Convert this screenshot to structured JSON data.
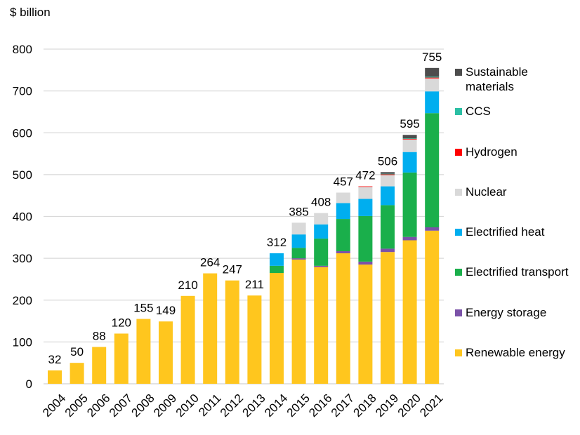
{
  "chart_data": {
    "type": "bar",
    "stacked": true,
    "title": "",
    "ylabel": "$ billion",
    "xlabel": "",
    "ylim": [
      0,
      800
    ],
    "yticks": [
      0,
      100,
      200,
      300,
      400,
      500,
      600,
      700,
      800
    ],
    "grid": true,
    "legend_position": "right",
    "categories": [
      "2004",
      "2005",
      "2006",
      "2007",
      "2008",
      "2009",
      "2010",
      "2011",
      "2012",
      "2013",
      "2014",
      "2015",
      "2016",
      "2017",
      "2018",
      "2019",
      "2020",
      "2021"
    ],
    "totals": [
      32,
      50,
      88,
      120,
      155,
      149,
      210,
      264,
      247,
      211,
      312,
      385,
      408,
      457,
      472,
      506,
      595,
      755
    ],
    "series": [
      {
        "name": "Renewable energy",
        "color": "#FFC61E",
        "values": [
          32,
          50,
          88,
          120,
          155,
          149,
          210,
          264,
          247,
          211,
          265,
          297,
          279,
          312,
          285,
          315,
          343,
          366
        ]
      },
      {
        "name": "Energy storage",
        "color": "#7B52A8",
        "values": [
          0,
          0,
          0,
          0,
          0,
          0,
          0,
          0,
          0,
          0,
          0,
          3,
          3,
          5,
          7,
          8,
          8,
          8
        ]
      },
      {
        "name": "Electrified transport",
        "color": "#1AAF4B",
        "values": [
          0,
          0,
          0,
          0,
          0,
          0,
          0,
          0,
          0,
          0,
          17,
          25,
          65,
          77,
          109,
          104,
          154,
          273
        ]
      },
      {
        "name": "Electrified heat",
        "color": "#00AEEF",
        "values": [
          0,
          0,
          0,
          0,
          0,
          0,
          0,
          0,
          0,
          0,
          30,
          32,
          34,
          38,
          41,
          45,
          49,
          52
        ]
      },
      {
        "name": "Nuclear",
        "color": "#D9D9D9",
        "values": [
          0,
          0,
          0,
          0,
          0,
          0,
          0,
          0,
          0,
          0,
          0,
          28,
          27,
          25,
          29,
          27,
          30,
          31
        ]
      },
      {
        "name": "Hydrogen",
        "color": "#FF0000",
        "values": [
          0,
          0,
          0,
          0,
          0,
          0,
          0,
          0,
          0,
          0,
          0,
          0,
          0,
          0,
          1,
          2,
          2,
          2
        ]
      },
      {
        "name": "CCS",
        "color": "#2BBFA4",
        "values": [
          0,
          0,
          0,
          0,
          0,
          0,
          0,
          0,
          0,
          0,
          0,
          0,
          0,
          0,
          0,
          1,
          1,
          2
        ]
      },
      {
        "name": "Sustainable materials",
        "color": "#4D4D4D",
        "values": [
          0,
          0,
          0,
          0,
          0,
          0,
          0,
          0,
          0,
          0,
          0,
          0,
          0,
          0,
          0,
          4,
          8,
          21
        ]
      }
    ],
    "legend_order": [
      "Sustainable materials",
      "CCS",
      "Hydrogen",
      "Nuclear",
      "Electrified heat",
      "Electrified transport",
      "Energy storage",
      "Renewable energy"
    ],
    "legend_labels": [
      "Sustainable\nmaterials",
      "CCS",
      "Hydrogen",
      "Nuclear",
      "Electrified heat",
      "Electrified transport",
      "Energy storage",
      "Renewable energy"
    ]
  },
  "colors": {
    "gridline": "#D9D9D9",
    "axis": "#D9D9D9",
    "text": "#000000"
  }
}
